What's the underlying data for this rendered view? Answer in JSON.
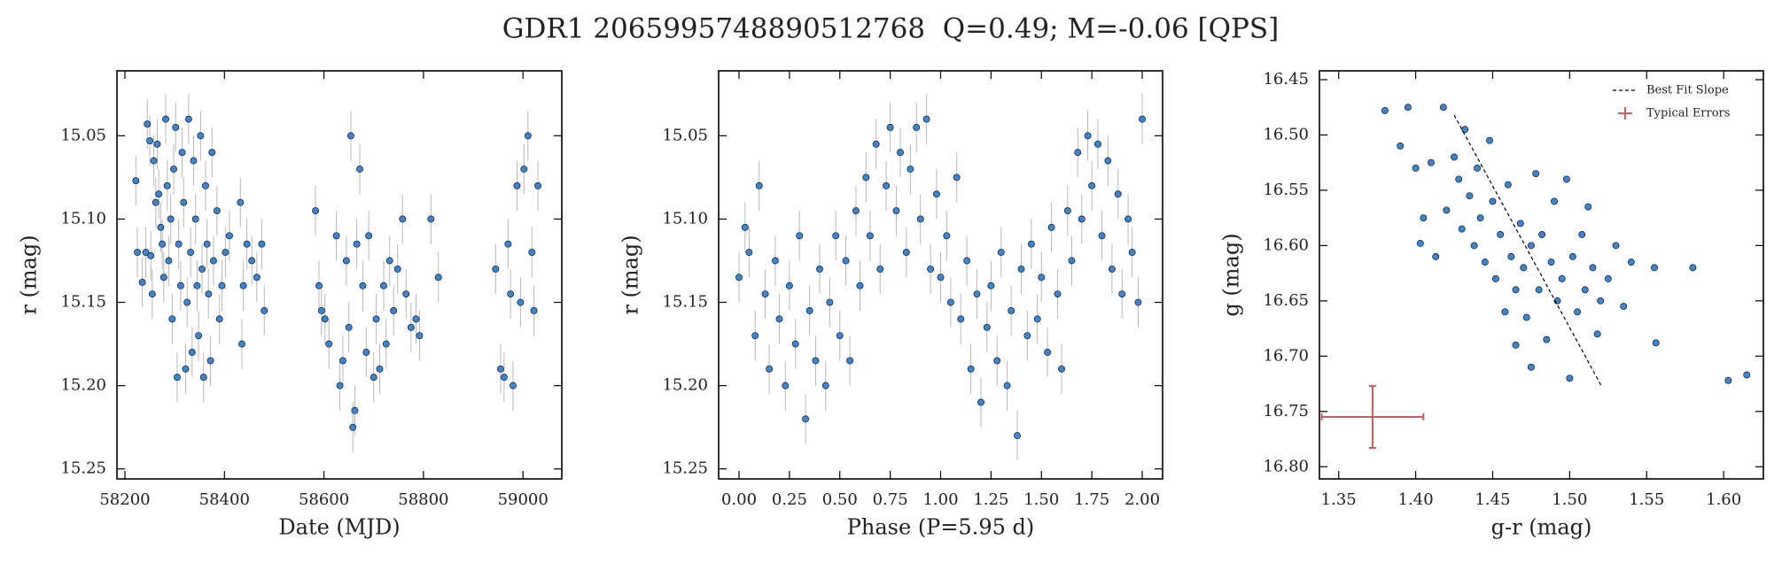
{
  "title": "GDR1 2065995748890512768  Q=0.49; M=-0.06 [QPS]",
  "chart_data": [
    {
      "type": "scatter",
      "xlabel": "Date (MJD)",
      "ylabel": "r (mag)",
      "xlim": [
        58184,
        59078
      ],
      "ylim": [
        15.011,
        15.256
      ],
      "y_inverted": true,
      "xticks": [
        58200,
        58400,
        58600,
        58800,
        59000
      ],
      "yticks": [
        15.05,
        {
          "value": 15.1,
          "label": "15.10"
        },
        15.15,
        {
          "value": 15.2,
          "label": "15.20"
        },
        15.25
      ],
      "series": [
        {
          "color": "#3a86d4",
          "error": 0.015,
          "x": [
            58222,
            58225,
            58235,
            58242,
            58245,
            58250,
            58252,
            58255,
            58258,
            58262,
            58265,
            58268,
            58272,
            58275,
            58278,
            58282,
            58285,
            58288,
            58292,
            58295,
            58298,
            58302,
            58305,
            58308,
            58312,
            58315,
            58318,
            58322,
            58325,
            58328,
            58332,
            58335,
            58338,
            58342,
            58345,
            58348,
            58352,
            58355,
            58358,
            58362,
            58365,
            58368,
            58372,
            58375,
            58378,
            58385,
            58390,
            58395,
            58402,
            58410,
            58432,
            58435,
            58438,
            58445,
            58455,
            58465,
            58475,
            58480,
            58583,
            58590,
            58595,
            58602,
            58610,
            58625,
            58632,
            58638,
            58645,
            58650,
            58654,
            58658,
            58662,
            58666,
            58672,
            58678,
            58685,
            58690,
            58700,
            58705,
            58712,
            58720,
            58725,
            58732,
            58740,
            58748,
            58758,
            58765,
            58775,
            58785,
            58792,
            58815,
            58830,
            58945,
            58955,
            58962,
            58970,
            58975,
            58980,
            58988,
            58995,
            59002,
            59010,
            59018,
            59022,
            59030
          ],
          "y": [
            15.077,
            15.12,
            15.138,
            15.12,
            15.043,
            15.053,
            15.122,
            15.145,
            15.065,
            15.09,
            15.055,
            15.085,
            15.105,
            15.115,
            15.135,
            15.04,
            15.08,
            15.125,
            15.1,
            15.16,
            15.07,
            15.045,
            15.195,
            15.115,
            15.14,
            15.06,
            15.09,
            15.19,
            15.15,
            15.04,
            15.12,
            15.18,
            15.065,
            15.1,
            15.14,
            15.17,
            15.05,
            15.13,
            15.195,
            15.08,
            15.115,
            15.145,
            15.185,
            15.06,
            15.125,
            15.095,
            15.16,
            15.14,
            15.12,
            15.11,
            15.09,
            15.175,
            15.14,
            15.115,
            15.125,
            15.135,
            15.115,
            15.155,
            15.095,
            15.14,
            15.155,
            15.16,
            15.175,
            15.11,
            15.2,
            15.185,
            15.125,
            15.165,
            15.05,
            15.225,
            15.215,
            15.115,
            15.07,
            15.14,
            15.18,
            15.11,
            15.195,
            15.16,
            15.19,
            15.14,
            15.175,
            15.125,
            15.155,
            15.13,
            15.1,
            15.145,
            15.165,
            15.16,
            15.17,
            15.1,
            15.135,
            15.13,
            15.19,
            15.195,
            15.115,
            15.145,
            15.2,
            15.08,
            15.15,
            15.07,
            15.05,
            15.12,
            15.155,
            15.08
          ]
        }
      ]
    },
    {
      "type": "scatter",
      "xlabel": "Phase (P=5.95 d)",
      "ylabel": "r (mag)",
      "xlim": [
        -0.101,
        2.101
      ],
      "ylim": [
        15.011,
        15.256
      ],
      "y_inverted": true,
      "xticks": [
        {
          "value": 0,
          "label": "0.00"
        },
        0.25,
        {
          "value": 0.5,
          "label": "0.50"
        },
        0.75,
        {
          "value": 1,
          "label": "1.00"
        },
        1.25,
        {
          "value": 1.5,
          "label": "1.50"
        },
        1.75,
        {
          "value": 2,
          "label": "2.00"
        }
      ],
      "yticks": [
        15.05,
        {
          "value": 15.1,
          "label": "15.10"
        },
        15.15,
        {
          "value": 15.2,
          "label": "15.20"
        },
        15.25
      ],
      "series": [
        {
          "color": "#3a86d4",
          "error": 0.015,
          "x": [
            0,
            0.03,
            0.05,
            0.08,
            0.1,
            0.13,
            0.15,
            0.18,
            0.2,
            0.23,
            0.25,
            0.28,
            0.3,
            0.33,
            0.35,
            0.38,
            0.4,
            0.43,
            0.45,
            0.48,
            0.5,
            0.53,
            0.55,
            0.58,
            0.6,
            0.63,
            0.65,
            0.68,
            0.7,
            0.73,
            0.75,
            0.78,
            0.8,
            0.83,
            0.85,
            0.88,
            0.9,
            0.93,
            0.95,
            0.98,
            1,
            1.03,
            1.05,
            1.08,
            1.1,
            1.13,
            1.15,
            1.18,
            1.2,
            1.23,
            1.25,
            1.28,
            1.3,
            1.33,
            1.35,
            1.38,
            1.4,
            1.43,
            1.45,
            1.48,
            1.5,
            1.53,
            1.55,
            1.58,
            1.6,
            1.63,
            1.65,
            1.68,
            1.7,
            1.73,
            1.75,
            1.78,
            1.8,
            1.83,
            1.85,
            1.88,
            1.9,
            1.93,
            1.95,
            1.98,
            2
          ],
          "y": [
            15.135,
            15.105,
            15.12,
            15.17,
            15.08,
            15.145,
            15.19,
            15.125,
            15.16,
            15.2,
            15.14,
            15.175,
            15.11,
            15.22,
            15.155,
            15.185,
            15.13,
            15.2,
            15.15,
            15.11,
            15.17,
            15.125,
            15.185,
            15.095,
            15.14,
            15.075,
            15.11,
            15.055,
            15.13,
            15.08,
            15.045,
            15.095,
            15.06,
            15.12,
            15.07,
            15.045,
            15.1,
            15.04,
            15.13,
            15.085,
            15.135,
            15.11,
            15.15,
            15.075,
            15.16,
            15.125,
            15.19,
            15.145,
            15.21,
            15.165,
            15.14,
            15.185,
            15.12,
            15.2,
            15.155,
            15.23,
            15.13,
            15.17,
            15.115,
            15.16,
            15.135,
            15.18,
            15.105,
            15.145,
            15.19,
            15.095,
            15.125,
            15.06,
            15.1,
            15.05,
            15.08,
            15.055,
            15.11,
            15.065,
            15.13,
            15.085,
            15.145,
            15.1,
            15.12,
            15.15,
            15.04
          ]
        }
      ]
    },
    {
      "type": "scatter",
      "xlabel": "g-r (mag)",
      "ylabel": "g (mag)",
      "xlim": [
        1.3375,
        1.6258
      ],
      "ylim": [
        16.442,
        16.811
      ],
      "y_inverted": true,
      "xticks": [
        1.35,
        {
          "value": 1.4,
          "label": "1.40"
        },
        1.45,
        {
          "value": 1.5,
          "label": "1.50"
        },
        1.55,
        {
          "value": 1.6,
          "label": "1.60"
        }
      ],
      "yticks": [
        16.45,
        {
          "value": 16.5,
          "label": "16.50"
        },
        16.55,
        {
          "value": 16.6,
          "label": "16.60"
        },
        16.65,
        {
          "value": 16.7,
          "label": "16.70"
        },
        16.75,
        {
          "value": 16.8,
          "label": "16.80"
        }
      ],
      "legend": "upper right",
      "series": [
        {
          "color": "#3a86d4",
          "x": [
            1.38,
            1.39,
            1.395,
            1.4,
            1.403,
            1.405,
            1.41,
            1.413,
            1.418,
            1.42,
            1.425,
            1.428,
            1.43,
            1.432,
            1.435,
            1.438,
            1.44,
            1.442,
            1.445,
            1.448,
            1.45,
            1.452,
            1.455,
            1.458,
            1.46,
            1.462,
            1.465,
            1.468,
            1.47,
            1.472,
            1.475,
            1.478,
            1.48,
            1.482,
            1.485,
            1.488,
            1.49,
            1.492,
            1.495,
            1.498,
            1.5,
            1.502,
            1.505,
            1.508,
            1.51,
            1.512,
            1.515,
            1.518,
            1.52,
            1.525,
            1.53,
            1.535,
            1.54,
            1.555,
            1.556,
            1.58,
            1.603,
            1.615,
            1.465,
            1.475
          ],
          "y": [
            16.478,
            16.51,
            16.475,
            16.53,
            16.598,
            16.575,
            16.525,
            16.61,
            16.475,
            16.568,
            16.52,
            16.54,
            16.585,
            16.495,
            16.555,
            16.6,
            16.53,
            16.575,
            16.615,
            16.505,
            16.56,
            16.63,
            16.59,
            16.66,
            16.545,
            16.61,
            16.64,
            16.58,
            16.62,
            16.665,
            16.6,
            16.535,
            16.64,
            16.59,
            16.685,
            16.615,
            16.56,
            16.65,
            16.63,
            16.54,
            16.72,
            16.61,
            16.66,
            16.59,
            16.64,
            16.565,
            16.62,
            16.68,
            16.65,
            16.63,
            16.6,
            16.655,
            16.615,
            16.62,
            16.688,
            16.62,
            16.722,
            16.717,
            16.69,
            16.71
          ]
        }
      ],
      "lines": [
        {
          "name": "Best Fit Slope",
          "color": "#000000",
          "x": [
            1.425,
            1.521
          ],
          "y": [
            16.482,
            16.728
          ]
        }
      ],
      "errorbars": [
        {
          "name": "Typical Errors",
          "color": "#cd5c5c",
          "x": 1.372,
          "y": 16.755,
          "xerr": 0.033,
          "yerr": 0.028
        }
      ]
    }
  ]
}
